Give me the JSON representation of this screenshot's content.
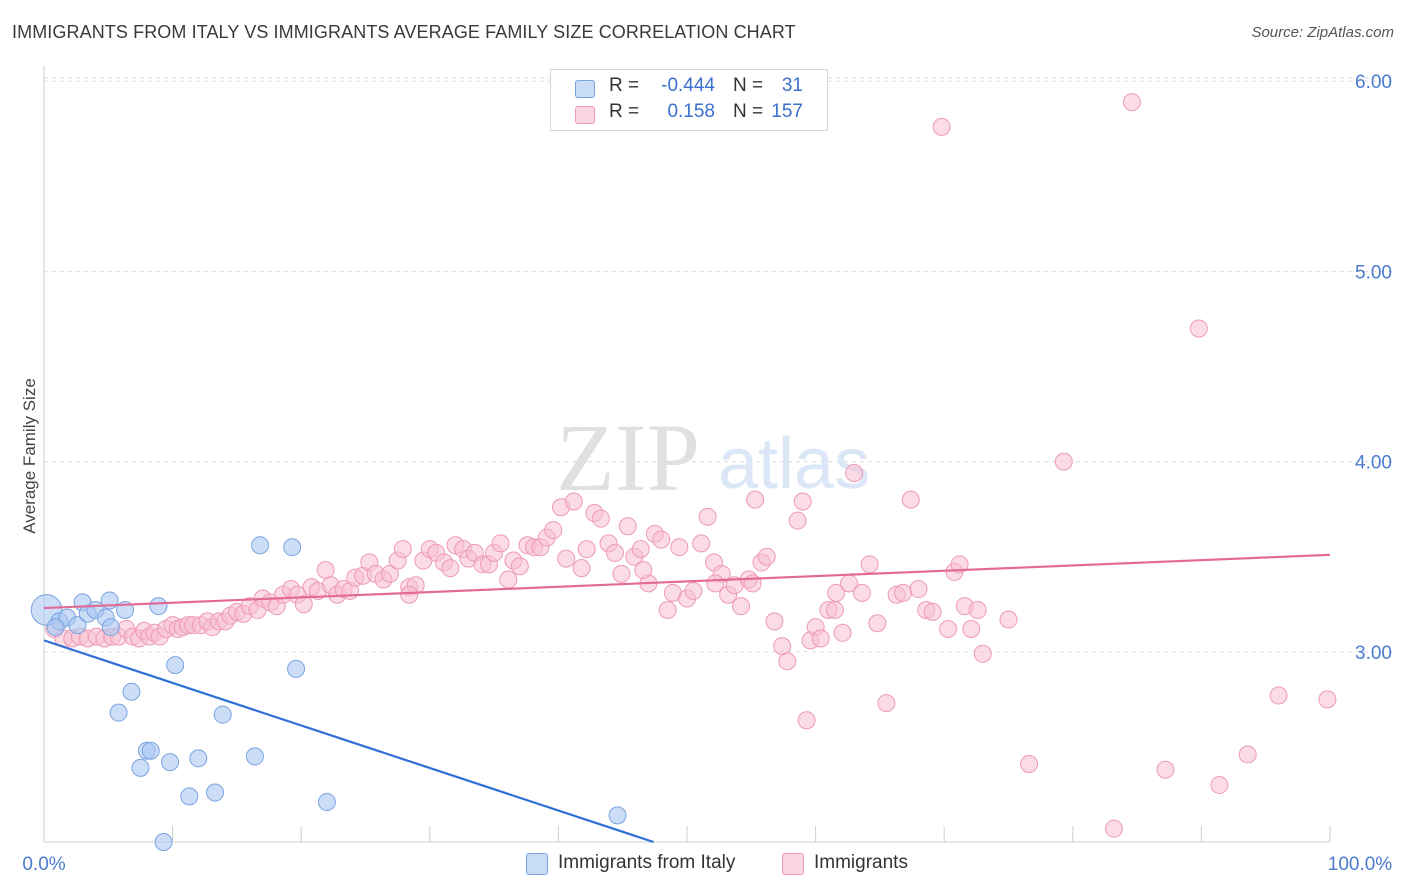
{
  "header": {
    "title": "IMMIGRANTS FROM ITALY VS IMMIGRANTS AVERAGE FAMILY SIZE CORRELATION CHART",
    "source": "Source: ZipAtlas.com"
  },
  "watermark": {
    "part1": "ZIP",
    "part2": "atlas"
  },
  "stats_legend": [
    {
      "r_label": "R =",
      "r_value": "-0.444",
      "n_label": "N =",
      "n_value": "31",
      "color": "#a9c7f2"
    },
    {
      "r_label": "R =",
      "r_value": "0.158",
      "n_label": "N =",
      "n_value": "157",
      "color": "#f7bfd0"
    }
  ],
  "bottom_legend": [
    {
      "label": "Immigrants from Italy",
      "color": "#a9c7f2"
    },
    {
      "label": "Immigrants",
      "color": "#f7bfd0"
    }
  ],
  "colors": {
    "italy_fill": "#a9c7f2",
    "italy_stroke": "#7aa4e0",
    "italy_line": "#2f6fd6",
    "imm_fill": "#f7bfd0",
    "imm_stroke": "#ee9ab5",
    "imm_line": "#e46a96",
    "tick_text": "#4a7bd0",
    "grid": "#dcdcdc"
  },
  "chart_data": {
    "type": "scatter",
    "title": "IMMIGRANTS FROM ITALY VS IMMIGRANTS AVERAGE FAMILY SIZE CORRELATION CHART",
    "xlabel": "",
    "ylabel": "Average Family Size",
    "xlim": [
      0,
      100
    ],
    "ylim": [
      2.0,
      6.08
    ],
    "x_tick_labels": [
      "0.0%",
      "100.0%"
    ],
    "y_ticks": [
      3.0,
      4.0,
      5.0,
      6.0
    ],
    "y_tick_labels": [
      "3.00",
      "4.00",
      "5.00",
      "6.00"
    ],
    "grid": true,
    "legend_position": "top-center",
    "series": [
      {
        "name": "Immigrants from Italy",
        "r": -0.444,
        "n": 31,
        "trend": {
          "x": [
            0,
            47.4
          ],
          "y": [
            3.06,
            2.0
          ]
        },
        "points": [
          [
            0.2,
            3.22,
            1.8
          ],
          [
            1.2,
            3.16,
            1
          ],
          [
            1.8,
            3.18,
            1
          ],
          [
            2.6,
            3.14,
            1
          ],
          [
            3.0,
            3.26,
            1
          ],
          [
            3.4,
            3.2,
            1
          ],
          [
            4.0,
            3.22,
            1
          ],
          [
            4.8,
            3.18,
            1
          ],
          [
            5.2,
            3.13,
            1
          ],
          [
            5.1,
            3.27,
            1
          ],
          [
            6.3,
            3.22,
            1
          ],
          [
            8.9,
            3.24,
            1
          ],
          [
            16.8,
            3.56,
            1
          ],
          [
            19.3,
            3.55,
            1
          ],
          [
            10.2,
            2.93,
            1
          ],
          [
            19.6,
            2.91,
            1
          ],
          [
            5.8,
            2.68,
            1
          ],
          [
            6.8,
            2.79,
            1
          ],
          [
            13.9,
            2.67,
            1
          ],
          [
            8.0,
            2.48,
            1
          ],
          [
            8.3,
            2.48,
            1
          ],
          [
            7.5,
            2.39,
            1
          ],
          [
            9.8,
            2.42,
            1
          ],
          [
            12.0,
            2.44,
            1
          ],
          [
            16.4,
            2.45,
            1
          ],
          [
            11.3,
            2.24,
            1
          ],
          [
            13.3,
            2.26,
            1
          ],
          [
            22.0,
            2.21,
            1
          ],
          [
            9.3,
            2.0,
            1
          ],
          [
            44.6,
            2.14,
            1
          ],
          [
            0.9,
            3.13,
            1
          ]
        ]
      },
      {
        "name": "Immigrants",
        "r": 0.158,
        "n": 157,
        "trend": {
          "x": [
            0,
            100
          ],
          "y": [
            3.23,
            3.51
          ]
        },
        "points": [
          [
            0.8,
            3.12
          ],
          [
            1.5,
            3.07
          ],
          [
            2.2,
            3.07
          ],
          [
            2.8,
            3.08
          ],
          [
            3.4,
            3.07
          ],
          [
            4.1,
            3.08
          ],
          [
            4.7,
            3.07
          ],
          [
            5.3,
            3.08
          ],
          [
            5.8,
            3.08
          ],
          [
            6.4,
            3.12
          ],
          [
            6.9,
            3.08
          ],
          [
            7.4,
            3.07
          ],
          [
            7.8,
            3.11
          ],
          [
            8.2,
            3.08
          ],
          [
            8.6,
            3.1
          ],
          [
            9.0,
            3.08
          ],
          [
            9.5,
            3.12
          ],
          [
            10.0,
            3.14
          ],
          [
            10.4,
            3.12
          ],
          [
            10.8,
            3.13
          ],
          [
            11.2,
            3.14
          ],
          [
            11.6,
            3.14
          ],
          [
            12.2,
            3.14
          ],
          [
            12.7,
            3.16
          ],
          [
            13.1,
            3.13
          ],
          [
            13.6,
            3.16
          ],
          [
            14.1,
            3.16
          ],
          [
            14.5,
            3.19
          ],
          [
            15.0,
            3.21
          ],
          [
            15.5,
            3.2
          ],
          [
            16.0,
            3.24
          ],
          [
            16.6,
            3.22
          ],
          [
            17.0,
            3.28
          ],
          [
            17.6,
            3.26
          ],
          [
            18.1,
            3.24
          ],
          [
            18.6,
            3.3
          ],
          [
            19.2,
            3.33
          ],
          [
            19.7,
            3.3
          ],
          [
            20.2,
            3.25
          ],
          [
            20.8,
            3.34
          ],
          [
            21.3,
            3.32
          ],
          [
            21.9,
            3.43
          ],
          [
            22.3,
            3.35
          ],
          [
            22.8,
            3.3
          ],
          [
            23.3,
            3.33
          ],
          [
            23.8,
            3.32
          ],
          [
            24.2,
            3.39
          ],
          [
            24.8,
            3.4
          ],
          [
            25.3,
            3.47
          ],
          [
            25.8,
            3.41
          ],
          [
            26.4,
            3.38
          ],
          [
            26.9,
            3.41
          ],
          [
            27.5,
            3.48
          ],
          [
            27.9,
            3.54
          ],
          [
            28.4,
            3.34
          ],
          [
            28.9,
            3.35
          ],
          [
            29.5,
            3.48
          ],
          [
            30.0,
            3.54
          ],
          [
            30.5,
            3.52
          ],
          [
            31.1,
            3.47
          ],
          [
            31.6,
            3.44
          ],
          [
            32.0,
            3.56
          ],
          [
            32.6,
            3.54
          ],
          [
            33.0,
            3.49
          ],
          [
            33.5,
            3.52
          ],
          [
            34.1,
            3.46
          ],
          [
            34.6,
            3.46
          ],
          [
            35.0,
            3.52
          ],
          [
            35.5,
            3.57
          ],
          [
            36.1,
            3.38
          ],
          [
            36.5,
            3.48
          ],
          [
            37.0,
            3.45
          ],
          [
            37.6,
            3.56
          ],
          [
            38.1,
            3.55
          ],
          [
            38.6,
            3.55
          ],
          [
            39.1,
            3.6
          ],
          [
            39.6,
            3.64
          ],
          [
            40.2,
            3.76
          ],
          [
            40.6,
            3.49
          ],
          [
            41.2,
            3.79
          ],
          [
            41.8,
            3.44
          ],
          [
            42.2,
            3.54
          ],
          [
            42.8,
            3.73
          ],
          [
            43.3,
            3.7
          ],
          [
            43.9,
            3.57
          ],
          [
            44.4,
            3.52
          ],
          [
            44.9,
            3.41
          ],
          [
            45.4,
            3.66
          ],
          [
            45.9,
            3.5
          ],
          [
            46.4,
            3.54
          ],
          [
            47.0,
            3.36
          ],
          [
            47.5,
            3.62
          ],
          [
            48.0,
            3.59
          ],
          [
            48.5,
            3.22
          ],
          [
            48.9,
            3.31
          ],
          [
            49.4,
            3.55
          ],
          [
            50.0,
            3.28
          ],
          [
            50.5,
            3.32
          ],
          [
            51.1,
            3.57
          ],
          [
            51.6,
            3.71
          ],
          [
            52.1,
            3.47
          ],
          [
            52.7,
            3.41
          ],
          [
            53.2,
            3.3
          ],
          [
            53.7,
            3.35
          ],
          [
            54.2,
            3.24
          ],
          [
            54.8,
            3.38
          ],
          [
            55.3,
            3.8
          ],
          [
            55.8,
            3.47
          ],
          [
            56.2,
            3.5
          ],
          [
            56.8,
            3.16
          ],
          [
            57.4,
            3.03
          ],
          [
            57.8,
            2.95
          ],
          [
            58.6,
            3.69
          ],
          [
            59.0,
            3.79
          ],
          [
            59.3,
            2.64
          ],
          [
            59.6,
            3.06
          ],
          [
            60.0,
            3.13
          ],
          [
            60.4,
            3.07
          ],
          [
            61.0,
            3.22
          ],
          [
            61.6,
            3.31
          ],
          [
            62.1,
            3.1
          ],
          [
            62.6,
            3.36
          ],
          [
            63.0,
            3.94
          ],
          [
            63.6,
            3.31
          ],
          [
            64.2,
            3.46
          ],
          [
            64.8,
            3.15
          ],
          [
            65.5,
            2.73
          ],
          [
            66.3,
            3.3
          ],
          [
            66.8,
            3.31
          ],
          [
            67.4,
            3.8
          ],
          [
            68.0,
            3.33
          ],
          [
            68.6,
            3.22
          ],
          [
            69.1,
            3.21
          ],
          [
            69.8,
            5.76
          ],
          [
            70.3,
            3.12
          ],
          [
            70.8,
            3.42
          ],
          [
            71.2,
            3.46
          ],
          [
            71.6,
            3.24
          ],
          [
            72.1,
            3.12
          ],
          [
            72.6,
            3.22
          ],
          [
            73.0,
            2.99
          ],
          [
            75.0,
            3.17
          ],
          [
            76.6,
            2.41
          ],
          [
            79.3,
            4.0
          ],
          [
            83.2,
            2.07
          ],
          [
            84.6,
            5.89
          ],
          [
            87.2,
            2.38
          ],
          [
            89.8,
            4.7
          ],
          [
            91.4,
            2.3
          ],
          [
            93.6,
            2.46
          ],
          [
            96.0,
            2.77
          ],
          [
            99.8,
            2.75
          ],
          [
            28.4,
            3.3
          ],
          [
            46.6,
            3.43
          ],
          [
            55.1,
            3.36
          ],
          [
            61.5,
            3.22
          ],
          [
            52.2,
            3.36
          ]
        ]
      }
    ]
  }
}
